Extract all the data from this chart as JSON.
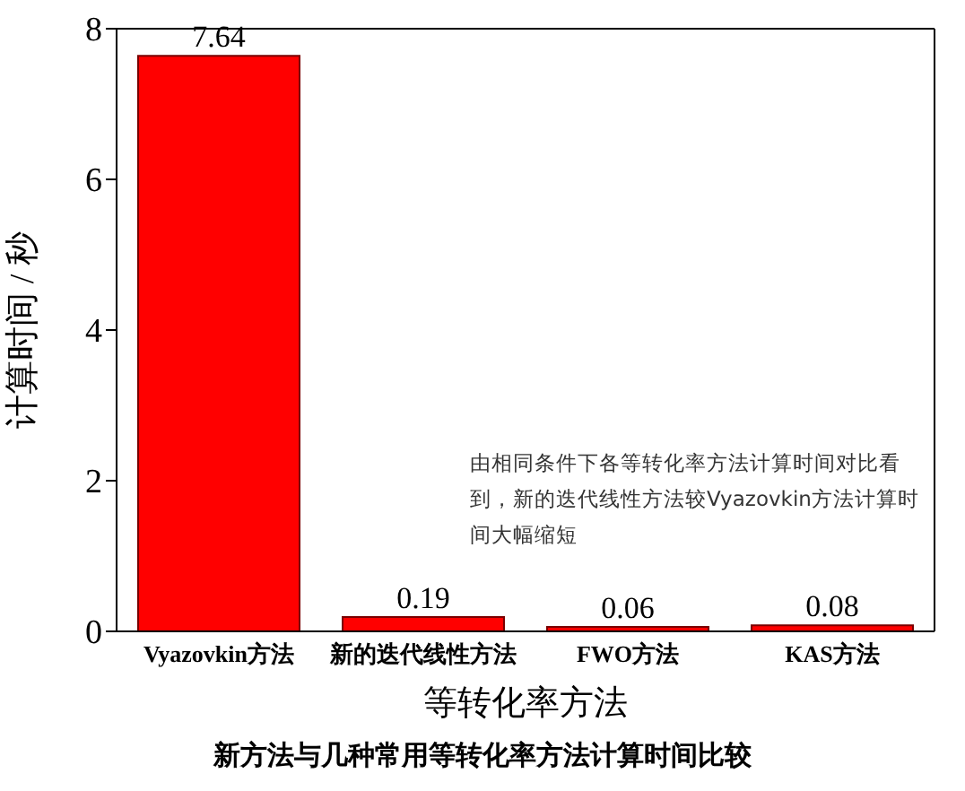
{
  "chart_data": {
    "type": "bar",
    "title": "新方法与几种常用等转化率方法计算时间比较",
    "xlabel": "等转化率方法",
    "ylabel": "计算时间 / 秒",
    "categories": [
      "Vyazovkin方法",
      "新的迭代线性方法",
      "FWO方法",
      "KAS方法"
    ],
    "values": [
      7.64,
      0.19,
      0.06,
      0.08
    ],
    "color": "#ff0000",
    "data_labels": true,
    "ylim": [
      0,
      8
    ],
    "yticks": [
      0,
      2,
      4,
      6,
      8
    ],
    "annotations": [
      "由相同条件下各等转化率方法计算时间对比看到，新的迭代线性方法较Vyazovkin方法计算时间大幅缩短"
    ]
  }
}
